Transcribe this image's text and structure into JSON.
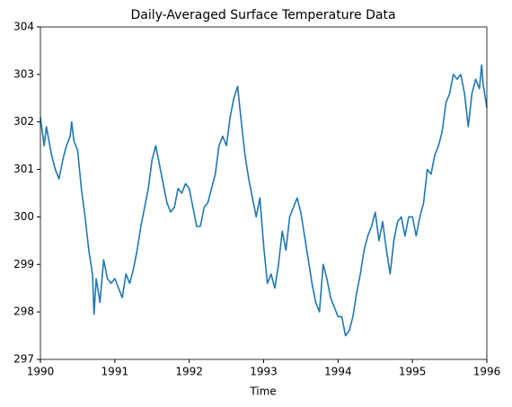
{
  "chart_data": {
    "type": "line",
    "title": "Daily-Averaged Surface Temperature Data",
    "x_label": "Time",
    "x": [
      1990.0,
      1990.05,
      1990.08,
      1990.15,
      1990.2,
      1990.25,
      1990.3,
      1990.35,
      1990.4,
      1990.42,
      1990.45,
      1990.5,
      1990.55,
      1990.6,
      1990.65,
      1990.7,
      1990.72,
      1990.75,
      1990.8,
      1990.85,
      1990.9,
      1990.95,
      1991.0,
      1991.1,
      1991.15,
      1991.2,
      1991.25,
      1991.3,
      1991.35,
      1991.4,
      1991.45,
      1991.5,
      1991.55,
      1991.6,
      1991.65,
      1991.7,
      1991.75,
      1991.8,
      1991.85,
      1991.9,
      1991.95,
      1992.0,
      1992.05,
      1992.1,
      1992.15,
      1992.2,
      1992.25,
      1992.3,
      1992.35,
      1992.4,
      1992.45,
      1992.5,
      1992.55,
      1992.6,
      1992.65,
      1992.7,
      1992.75,
      1992.8,
      1992.85,
      1992.9,
      1992.95,
      1993.0,
      1993.05,
      1993.1,
      1993.15,
      1993.2,
      1993.25,
      1993.3,
      1993.35,
      1993.4,
      1993.45,
      1993.5,
      1993.55,
      1993.6,
      1993.65,
      1993.7,
      1993.75,
      1993.8,
      1993.85,
      1993.9,
      1993.95,
      1994.0,
      1994.05,
      1994.1,
      1994.15,
      1994.2,
      1994.25,
      1994.3,
      1994.35,
      1994.4,
      1994.45,
      1994.5,
      1994.55,
      1994.6,
      1994.65,
      1994.7,
      1994.75,
      1994.8,
      1994.85,
      1994.9,
      1994.95,
      1995.0,
      1995.05,
      1995.1,
      1995.15,
      1995.2,
      1995.25,
      1995.3,
      1995.35,
      1995.4,
      1995.45,
      1995.5,
      1995.55,
      1995.6,
      1995.65,
      1995.7,
      1995.75,
      1995.8,
      1995.85,
      1995.9,
      1995.93,
      1995.95,
      1996.0
    ],
    "series": [
      {
        "color": "#1f77b4",
        "values": [
          302.1,
          301.5,
          301.9,
          301.3,
          301.0,
          300.8,
          301.2,
          301.5,
          301.7,
          302.0,
          301.6,
          301.4,
          300.6,
          300.0,
          299.3,
          298.8,
          297.95,
          298.7,
          298.2,
          299.1,
          298.7,
          298.6,
          298.7,
          298.3,
          298.8,
          298.6,
          298.9,
          299.3,
          299.8,
          300.2,
          300.6,
          301.2,
          301.5,
          301.1,
          300.7,
          300.3,
          300.1,
          300.2,
          300.6,
          300.5,
          300.7,
          300.6,
          300.2,
          299.8,
          299.8,
          300.2,
          300.3,
          300.6,
          300.9,
          301.5,
          301.7,
          301.5,
          302.1,
          302.5,
          302.75,
          302.0,
          301.3,
          300.8,
          300.4,
          300.0,
          300.4,
          299.4,
          298.6,
          298.8,
          298.5,
          299.0,
          299.7,
          299.3,
          300.0,
          300.2,
          300.4,
          300.1,
          299.6,
          299.1,
          298.6,
          298.2,
          298.0,
          299.0,
          298.7,
          298.3,
          298.1,
          297.9,
          297.9,
          297.5,
          297.6,
          297.9,
          298.4,
          298.8,
          299.3,
          299.6,
          299.8,
          300.1,
          299.5,
          299.9,
          299.3,
          298.8,
          299.5,
          299.9,
          300.0,
          299.6,
          300.0,
          300.0,
          299.6,
          300.0,
          300.3,
          301.0,
          300.9,
          301.3,
          301.5,
          301.8,
          302.4,
          302.6,
          303.0,
          302.9,
          303.0,
          302.6,
          301.9,
          302.6,
          302.9,
          302.7,
          303.2,
          302.8,
          302.3
        ]
      }
    ],
    "xlim": [
      1990,
      1996
    ],
    "xticks": [
      1990,
      1991,
      1992,
      1993,
      1994,
      1995,
      1996
    ],
    "ylim": [
      297,
      304
    ],
    "yticks": [
      297,
      298,
      299,
      300,
      301,
      302,
      303,
      304
    ]
  }
}
